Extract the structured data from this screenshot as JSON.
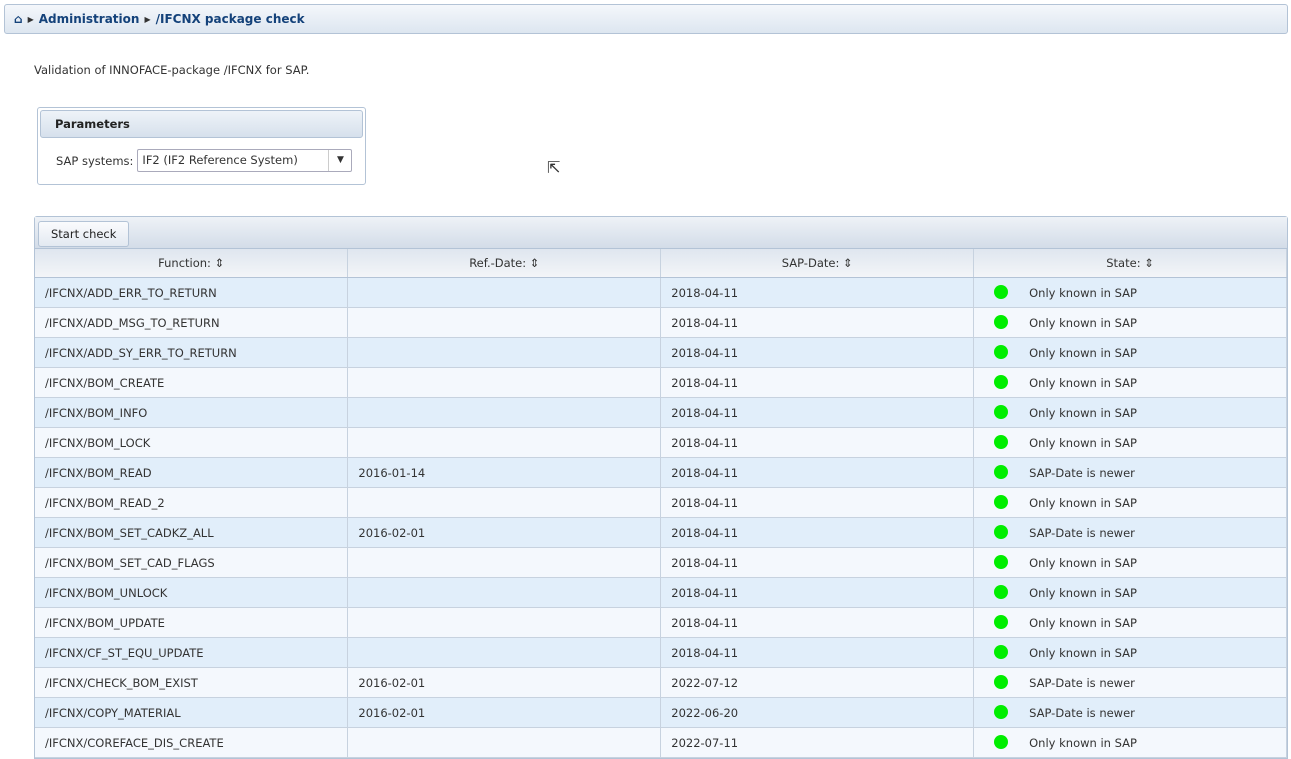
{
  "breadcrumb": {
    "home_icon": "home-icon",
    "items": [
      "Administration",
      "/IFCNX package check"
    ]
  },
  "description": "Validation of INNOFACE-package /IFCNX for SAP.",
  "parameters": {
    "title": "Parameters",
    "sap_systems_label": "SAP systems:",
    "sap_systems_value": "IF2 (IF2 Reference System)"
  },
  "toolbar": {
    "start_check": "Start check"
  },
  "table": {
    "columns": [
      "Function:",
      "Ref.-Date:",
      "SAP-Date:",
      "State:"
    ],
    "state_color": "#00ee00",
    "rows": [
      [
        "/IFCNX/ADD_ERR_TO_RETURN",
        "",
        "2018-04-11",
        "Only known in SAP"
      ],
      [
        "/IFCNX/ADD_MSG_TO_RETURN",
        "",
        "2018-04-11",
        "Only known in SAP"
      ],
      [
        "/IFCNX/ADD_SY_ERR_TO_RETURN",
        "",
        "2018-04-11",
        "Only known in SAP"
      ],
      [
        "/IFCNX/BOM_CREATE",
        "",
        "2018-04-11",
        "Only known in SAP"
      ],
      [
        "/IFCNX/BOM_INFO",
        "",
        "2018-04-11",
        "Only known in SAP"
      ],
      [
        "/IFCNX/BOM_LOCK",
        "",
        "2018-04-11",
        "Only known in SAP"
      ],
      [
        "/IFCNX/BOM_READ",
        "2016-01-14",
        "2018-04-11",
        "SAP-Date is newer"
      ],
      [
        "/IFCNX/BOM_READ_2",
        "",
        "2018-04-11",
        "Only known in SAP"
      ],
      [
        "/IFCNX/BOM_SET_CADKZ_ALL",
        "2016-02-01",
        "2018-04-11",
        "SAP-Date is newer"
      ],
      [
        "/IFCNX/BOM_SET_CAD_FLAGS",
        "",
        "2018-04-11",
        "Only known in SAP"
      ],
      [
        "/IFCNX/BOM_UNLOCK",
        "",
        "2018-04-11",
        "Only known in SAP"
      ],
      [
        "/IFCNX/BOM_UPDATE",
        "",
        "2018-04-11",
        "Only known in SAP"
      ],
      [
        "/IFCNX/CF_ST_EQU_UPDATE",
        "",
        "2018-04-11",
        "Only known in SAP"
      ],
      [
        "/IFCNX/CHECK_BOM_EXIST",
        "2016-02-01",
        "2022-07-12",
        "SAP-Date is newer"
      ],
      [
        "/IFCNX/COPY_MATERIAL",
        "2016-02-01",
        "2022-06-20",
        "SAP-Date is newer"
      ],
      [
        "/IFCNX/COREFACE_DIS_CREATE",
        "",
        "2022-07-11",
        "Only known in SAP"
      ]
    ]
  }
}
